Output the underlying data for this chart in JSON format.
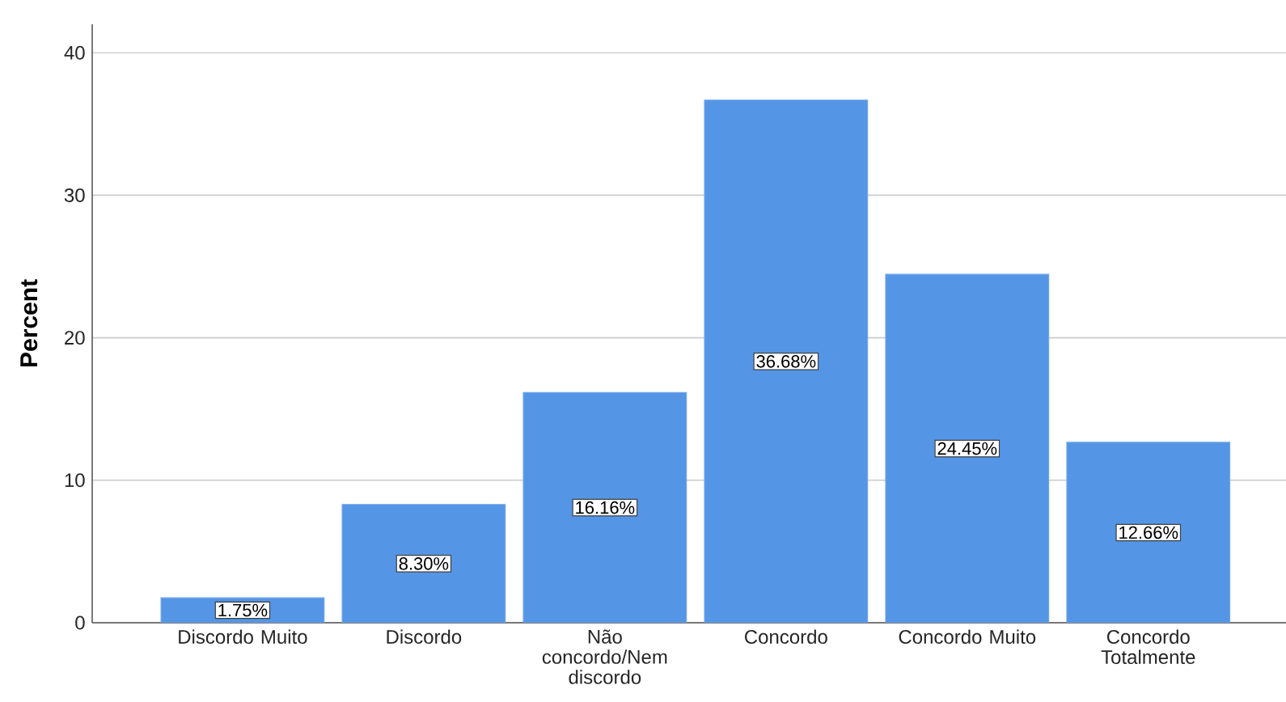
{
  "chart_data": {
    "type": "bar",
    "ylabel": "Percent",
    "categories": [
      "Discordo Muito",
      "Discordo",
      "Não concordo/Nem discordo",
      "Concordo",
      "Concordo Muito",
      "Concordo Totalmente"
    ],
    "values": [
      1.75,
      8.3,
      16.16,
      36.68,
      24.45,
      12.66
    ],
    "value_labels": [
      "1.75%",
      "8.30%",
      "16.16%",
      "36.68%",
      "24.45%",
      "12.66%"
    ],
    "color": "#5595e5",
    "ylim": [
      0,
      42
    ],
    "yticks": [
      0,
      10,
      20,
      30,
      40
    ],
    "grid": "y"
  }
}
